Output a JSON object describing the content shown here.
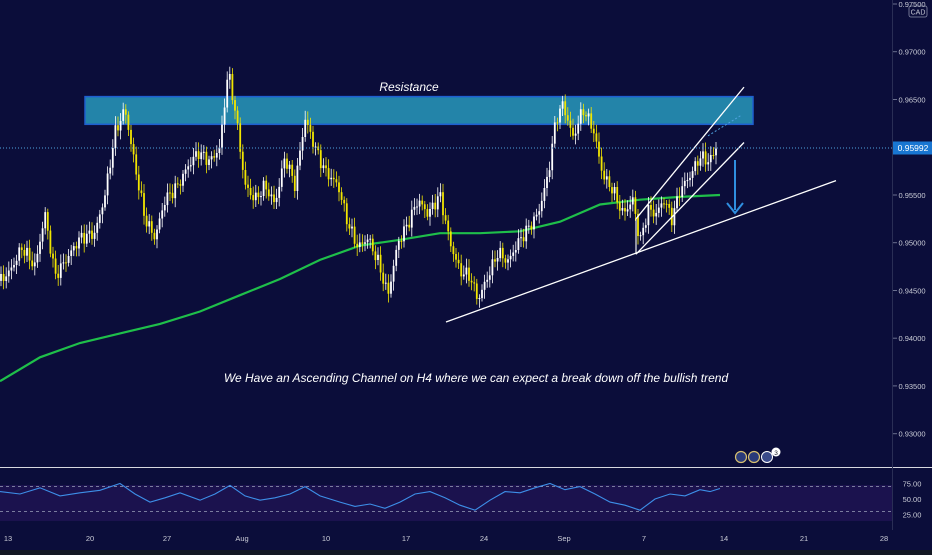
{
  "chart_data": {
    "type": "candlestick",
    "currency": "CAD",
    "y_axis": {
      "ticks": [
        "0.97500",
        "0.97000",
        "0.96500",
        "0.95500",
        "0.95000",
        "0.94500",
        "0.94000",
        "0.93500",
        "0.93000"
      ],
      "range": [
        0.9285,
        0.975
      ]
    },
    "x_axis": {
      "ticks": [
        "13",
        "20",
        "27",
        "Aug",
        "10",
        "17",
        "24",
        "Sep",
        "7",
        "14",
        "21",
        "28"
      ]
    },
    "current_price": "0.95992",
    "current_price_value": 0.95992,
    "close_path": [
      [
        0,
        0.946
      ],
      [
        10,
        0.947
      ],
      [
        22,
        0.9495
      ],
      [
        35,
        0.9475
      ],
      [
        45,
        0.953
      ],
      [
        55,
        0.9465
      ],
      [
        68,
        0.9485
      ],
      [
        80,
        0.9505
      ],
      [
        95,
        0.951
      ],
      [
        105,
        0.955
      ],
      [
        115,
        0.9615
      ],
      [
        125,
        0.964
      ],
      [
        135,
        0.958
      ],
      [
        145,
        0.9525
      ],
      [
        155,
        0.9505
      ],
      [
        165,
        0.9545
      ],
      [
        178,
        0.956
      ],
      [
        188,
        0.958
      ],
      [
        198,
        0.9595
      ],
      [
        210,
        0.9585
      ],
      [
        220,
        0.96
      ],
      [
        228,
        0.968
      ],
      [
        235,
        0.964
      ],
      [
        245,
        0.956
      ],
      [
        255,
        0.9545
      ],
      [
        265,
        0.956
      ],
      [
        275,
        0.954
      ],
      [
        285,
        0.959
      ],
      [
        295,
        0.956
      ],
      [
        305,
        0.963
      ],
      [
        315,
        0.96
      ],
      [
        325,
        0.9575
      ],
      [
        338,
        0.956
      ],
      [
        348,
        0.952
      ],
      [
        358,
        0.9495
      ],
      [
        368,
        0.9505
      ],
      [
        378,
        0.948
      ],
      [
        388,
        0.9445
      ],
      [
        398,
        0.95
      ],
      [
        408,
        0.952
      ],
      [
        418,
        0.9545
      ],
      [
        428,
        0.953
      ],
      [
        440,
        0.955
      ],
      [
        450,
        0.95
      ],
      [
        460,
        0.947
      ],
      [
        470,
        0.9465
      ],
      [
        478,
        0.944
      ],
      [
        488,
        0.9465
      ],
      [
        498,
        0.949
      ],
      [
        508,
        0.948
      ],
      [
        518,
        0.95
      ],
      [
        528,
        0.9515
      ],
      [
        538,
        0.953
      ],
      [
        548,
        0.957
      ],
      [
        556,
        0.963
      ],
      [
        563,
        0.9645
      ],
      [
        573,
        0.961
      ],
      [
        583,
        0.964
      ],
      [
        593,
        0.962
      ],
      [
        603,
        0.957
      ],
      [
        613,
        0.9555
      ],
      [
        623,
        0.953
      ],
      [
        633,
        0.9545
      ],
      [
        640,
        0.95
      ],
      [
        648,
        0.9535
      ],
      [
        656,
        0.953
      ],
      [
        664,
        0.9545
      ],
      [
        672,
        0.9525
      ],
      [
        680,
        0.9555
      ],
      [
        690,
        0.957
      ],
      [
        700,
        0.959
      ],
      [
        710,
        0.9585
      ],
      [
        716,
        0.96
      ],
      [
        720,
        0.9599
      ]
    ],
    "moving_average": [
      [
        0,
        0.9355
      ],
      [
        40,
        0.938
      ],
      [
        80,
        0.9395
      ],
      [
        120,
        0.9405
      ],
      [
        160,
        0.9415
      ],
      [
        200,
        0.9428
      ],
      [
        240,
        0.9445
      ],
      [
        280,
        0.9462
      ],
      [
        320,
        0.9482
      ],
      [
        360,
        0.9497
      ],
      [
        400,
        0.9503
      ],
      [
        440,
        0.951
      ],
      [
        480,
        0.951
      ],
      [
        520,
        0.9512
      ],
      [
        560,
        0.9522
      ],
      [
        600,
        0.954
      ],
      [
        640,
        0.9545
      ],
      [
        680,
        0.9548
      ],
      [
        720,
        0.955
      ]
    ],
    "resistance_zone": {
      "label": "Resistance",
      "top": 0.9653,
      "bottom": 0.9624
    },
    "channel_upper": [
      [
        636,
        0.9525
      ],
      [
        744,
        0.9663
      ]
    ],
    "channel_lower": [
      [
        636,
        0.9488
      ],
      [
        744,
        0.9605
      ]
    ],
    "support_line": [
      [
        446,
        0.9417
      ],
      [
        836,
        0.9565
      ]
    ],
    "annotation": "We Have an Ascending Channel on H4 where we can expect a break down off the bullish trend",
    "rsi": {
      "ticks": [
        "75.00",
        "50.00",
        "25.00"
      ],
      "levels": [
        70,
        30
      ],
      "values": [
        [
          0,
          62
        ],
        [
          20,
          58
        ],
        [
          40,
          68
        ],
        [
          60,
          55
        ],
        [
          80,
          60
        ],
        [
          100,
          64
        ],
        [
          120,
          75
        ],
        [
          135,
          58
        ],
        [
          150,
          45
        ],
        [
          165,
          52
        ],
        [
          180,
          60
        ],
        [
          200,
          48
        ],
        [
          215,
          58
        ],
        [
          230,
          72
        ],
        [
          245,
          55
        ],
        [
          260,
          48
        ],
        [
          275,
          52
        ],
        [
          290,
          58
        ],
        [
          305,
          70
        ],
        [
          320,
          55
        ],
        [
          340,
          45
        ],
        [
          355,
          38
        ],
        [
          370,
          42
        ],
        [
          385,
          35
        ],
        [
          400,
          45
        ],
        [
          415,
          58
        ],
        [
          430,
          62
        ],
        [
          445,
          52
        ],
        [
          460,
          40
        ],
        [
          475,
          32
        ],
        [
          490,
          48
        ],
        [
          505,
          62
        ],
        [
          520,
          60
        ],
        [
          535,
          68
        ],
        [
          550,
          75
        ],
        [
          565,
          65
        ],
        [
          580,
          70
        ],
        [
          595,
          58
        ],
        [
          610,
          45
        ],
        [
          625,
          40
        ],
        [
          640,
          32
        ],
        [
          655,
          50
        ],
        [
          670,
          58
        ],
        [
          685,
          55
        ],
        [
          700,
          65
        ],
        [
          710,
          62
        ],
        [
          720,
          67
        ]
      ]
    }
  },
  "ui": {
    "scale_label": "CAD",
    "toolbar_icons": [
      "globe-icon",
      "info-icon",
      "news-icon",
      "count-badge"
    ],
    "badge_count": "3"
  }
}
